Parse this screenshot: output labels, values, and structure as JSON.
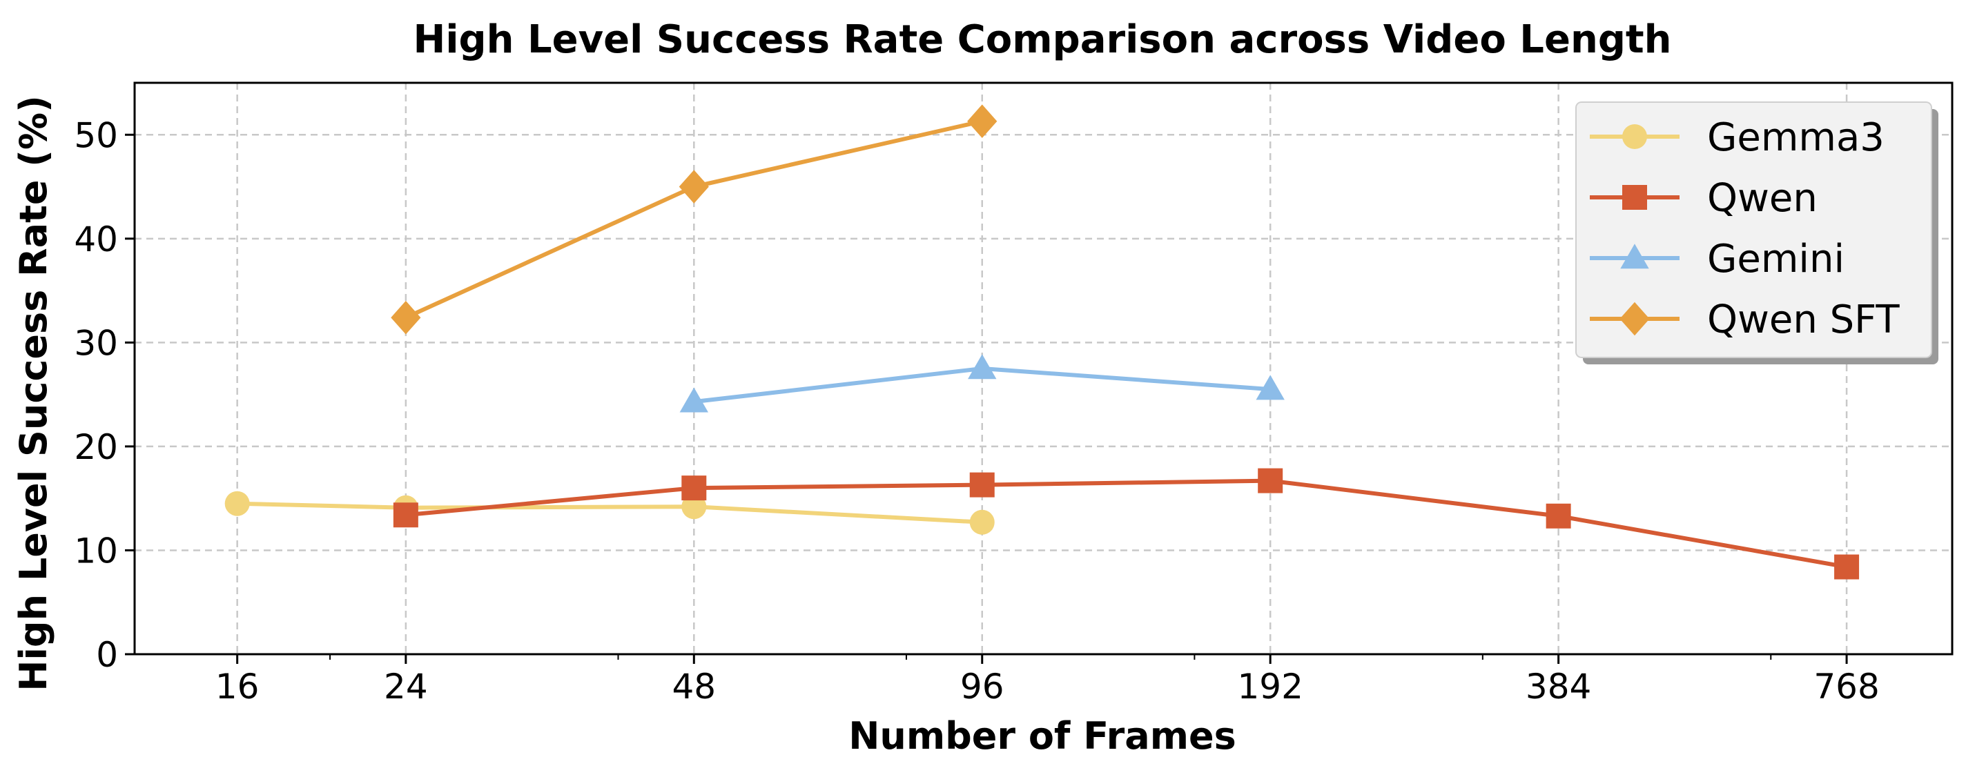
{
  "chart_data": {
    "type": "line",
    "title": "High Level Success Rate Comparison across Video Length",
    "xlabel": "Number of Frames",
    "ylabel": "High Level Success Rate (%)",
    "x_scale": "log2",
    "xlim": [
      12.5,
      990
    ],
    "ylim": [
      0,
      55
    ],
    "x_ticks": [
      16,
      24,
      48,
      96,
      192,
      384,
      768
    ],
    "x_tick_labels": [
      "16",
      "24",
      "48",
      "96",
      "192",
      "384",
      "768"
    ],
    "y_ticks": [
      0,
      10,
      20,
      30,
      40,
      50
    ],
    "y_tick_labels": [
      "0",
      "10",
      "20",
      "30",
      "40",
      "50"
    ],
    "grid": true,
    "legend_position": "top-right",
    "series": [
      {
        "name": "Gemma3",
        "marker": "circle",
        "color": "#F2D47A",
        "x": [
          16,
          24,
          48,
          96
        ],
        "y": [
          14.5,
          14.1,
          14.2,
          12.7
        ]
      },
      {
        "name": "Qwen",
        "marker": "square",
        "color": "#D55A33",
        "x": [
          24,
          48,
          96,
          192,
          384,
          768
        ],
        "y": [
          13.4,
          16.0,
          16.3,
          16.7,
          13.3,
          8.4
        ]
      },
      {
        "name": "Gemini",
        "marker": "triangle",
        "color": "#8CBCE8",
        "x": [
          48,
          96,
          192
        ],
        "y": [
          24.3,
          27.5,
          25.5
        ]
      },
      {
        "name": "Qwen SFT",
        "marker": "diamond",
        "color": "#E8A03E",
        "x": [
          24,
          48,
          96
        ],
        "y": [
          32.4,
          45.0,
          51.3
        ]
      }
    ]
  }
}
